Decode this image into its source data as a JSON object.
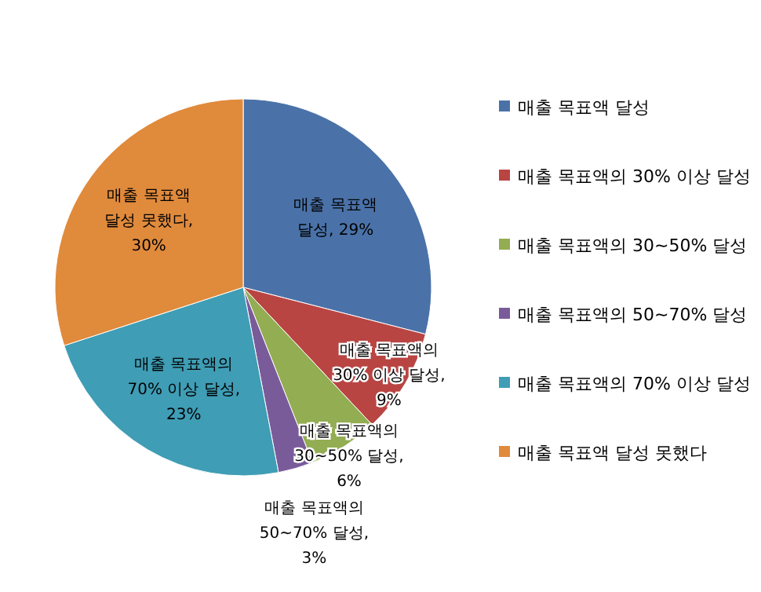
{
  "chart_data": {
    "type": "pie",
    "categories": [
      "매출 목표액 달성",
      "매출 목표액의 30% 이상 달성",
      "매출 목표액의 30~50% 달성",
      "매출 목표액의 50~70% 달성",
      "매출 목표액의 70% 이상 달성",
      "매출 목표액 달성 못했다"
    ],
    "values": [
      29,
      9,
      6,
      3,
      23,
      30
    ],
    "colors": [
      "#4a72a8",
      "#b94543",
      "#93ad52",
      "#7a5b9a",
      "#3f9db5",
      "#e08a3c"
    ],
    "value_labels": [
      "매출 목표액 달성, 29%",
      "매출 목표액의 30% 이상 달성, 9%",
      "매출 목표액의 30~50% 달성, 6%",
      "매출 목표액의 50~70% 달성, 3%",
      "매출 목표액의 70% 이상 달성, 23%",
      "매출 목표액 달성 못했다, 30%"
    ],
    "legend": "right"
  }
}
